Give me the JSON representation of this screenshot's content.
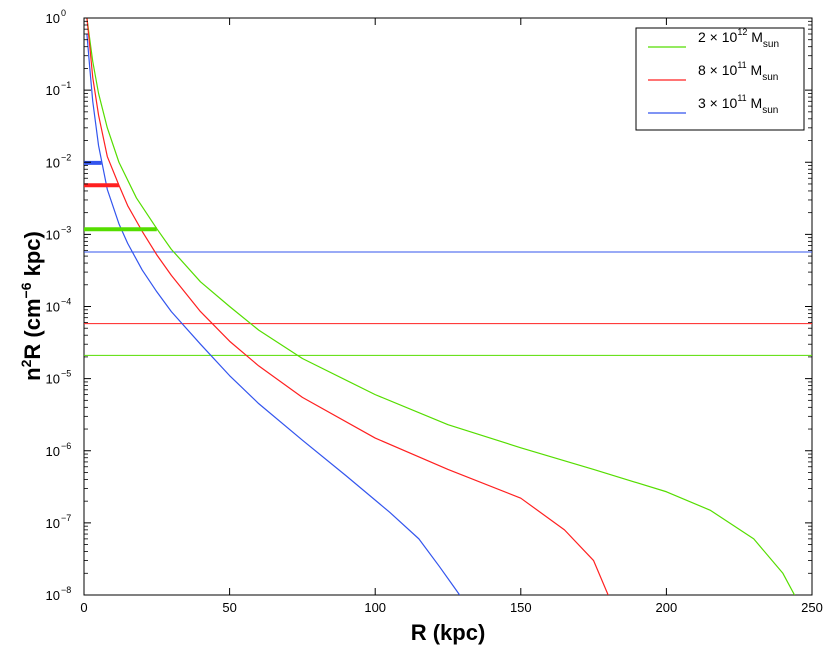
{
  "chart_data": {
    "type": "line",
    "xlabel": "R (kpc)",
    "ylabel": {
      "base": "n",
      "sup1": "2",
      "mid": "R (cm",
      "sup2": "−6",
      "end": " kpc)"
    },
    "xlim": [
      0,
      250
    ],
    "ylim": [
      1e-08,
      1
    ],
    "yscale": "log",
    "grid": false,
    "legend_position": "top-right",
    "x_ticks": [
      "0",
      "50",
      "100",
      "150",
      "200",
      "250"
    ],
    "x_tick_values": [
      0,
      50,
      100,
      150,
      200,
      250
    ],
    "y_ticks": [
      {
        "base": "10",
        "exp": "−8",
        "value": 1e-08
      },
      {
        "base": "10",
        "exp": "−7",
        "value": 1e-07
      },
      {
        "base": "10",
        "exp": "−6",
        "value": 1e-06
      },
      {
        "base": "10",
        "exp": "−5",
        "value": 1e-05
      },
      {
        "base": "10",
        "exp": "−4",
        "value": 0.0001
      },
      {
        "base": "10",
        "exp": "−3",
        "value": 0.001
      },
      {
        "base": "10",
        "exp": "−2",
        "value": 0.01
      },
      {
        "base": "10",
        "exp": "−1",
        "value": 0.1
      },
      {
        "base": "10",
        "exp": "0",
        "value": 1
      }
    ],
    "series": [
      {
        "name": "2 × 10^12 M_sun",
        "legend": {
          "pre": "2 × 10",
          "sup": "12",
          "mid": " M",
          "sub": "sun"
        },
        "color": "#55dd00",
        "x": [
          1,
          2,
          3,
          5,
          8,
          12,
          18,
          25,
          30,
          40,
          50,
          60,
          75,
          100,
          125,
          150,
          175,
          200,
          215,
          230,
          240,
          244
        ],
        "y": [
          1.0,
          0.5,
          0.25,
          0.09,
          0.03,
          0.01,
          0.0032,
          0.0012,
          0.00062,
          0.00022,
          0.0001,
          4.7e-05,
          1.9e-05,
          6e-06,
          2.3e-06,
          1.1e-06,
          5.5e-07,
          2.7e-07,
          1.5e-07,
          6e-08,
          2e-08,
          1e-08
        ],
        "reference_level": 2.1e-05,
        "marker_bar": {
          "x": [
            0,
            25
          ],
          "y": 0.00118
        }
      },
      {
        "name": "8 × 10^11 M_sun",
        "legend": {
          "pre": "8 × 10",
          "sup": "11",
          "mid": " M",
          "sub": "sun"
        },
        "color": "#ff2020",
        "x": [
          1,
          2,
          3,
          5,
          8,
          12,
          15,
          20,
          25,
          30,
          40,
          50,
          60,
          75,
          100,
          125,
          150,
          165,
          175,
          180
        ],
        "y": [
          1.0,
          0.4,
          0.15,
          0.045,
          0.012,
          0.0048,
          0.0025,
          0.0011,
          0.00052,
          0.00027,
          8.5e-05,
          3.3e-05,
          1.5e-05,
          5.5e-06,
          1.5e-06,
          5.5e-07,
          2.2e-07,
          8e-08,
          3e-08,
          1e-08
        ],
        "reference_level": 5.8e-05,
        "marker_bar": {
          "x": [
            0,
            12
          ],
          "y": 0.0048
        }
      },
      {
        "name": "3 × 10^11 M_sun",
        "legend": {
          "pre": "3 × 10",
          "sup": "11",
          "mid": " M",
          "sub": "sun"
        },
        "color": "#3355ee",
        "x": [
          1,
          2,
          3,
          5,
          8,
          12,
          15,
          20,
          25,
          30,
          40,
          50,
          60,
          75,
          90,
          105,
          115,
          122,
          127,
          129
        ],
        "y": [
          0.6,
          0.2,
          0.07,
          0.017,
          0.0042,
          0.0014,
          0.00075,
          0.00032,
          0.00016,
          8.5e-05,
          3e-05,
          1.1e-05,
          4.5e-06,
          1.4e-06,
          4.5e-07,
          1.4e-07,
          6e-08,
          2.5e-08,
          1.3e-08,
          1e-08
        ],
        "reference_level": 0.00057,
        "marker_bar": {
          "x": [
            0,
            6
          ],
          "y": 0.0098
        }
      }
    ]
  }
}
